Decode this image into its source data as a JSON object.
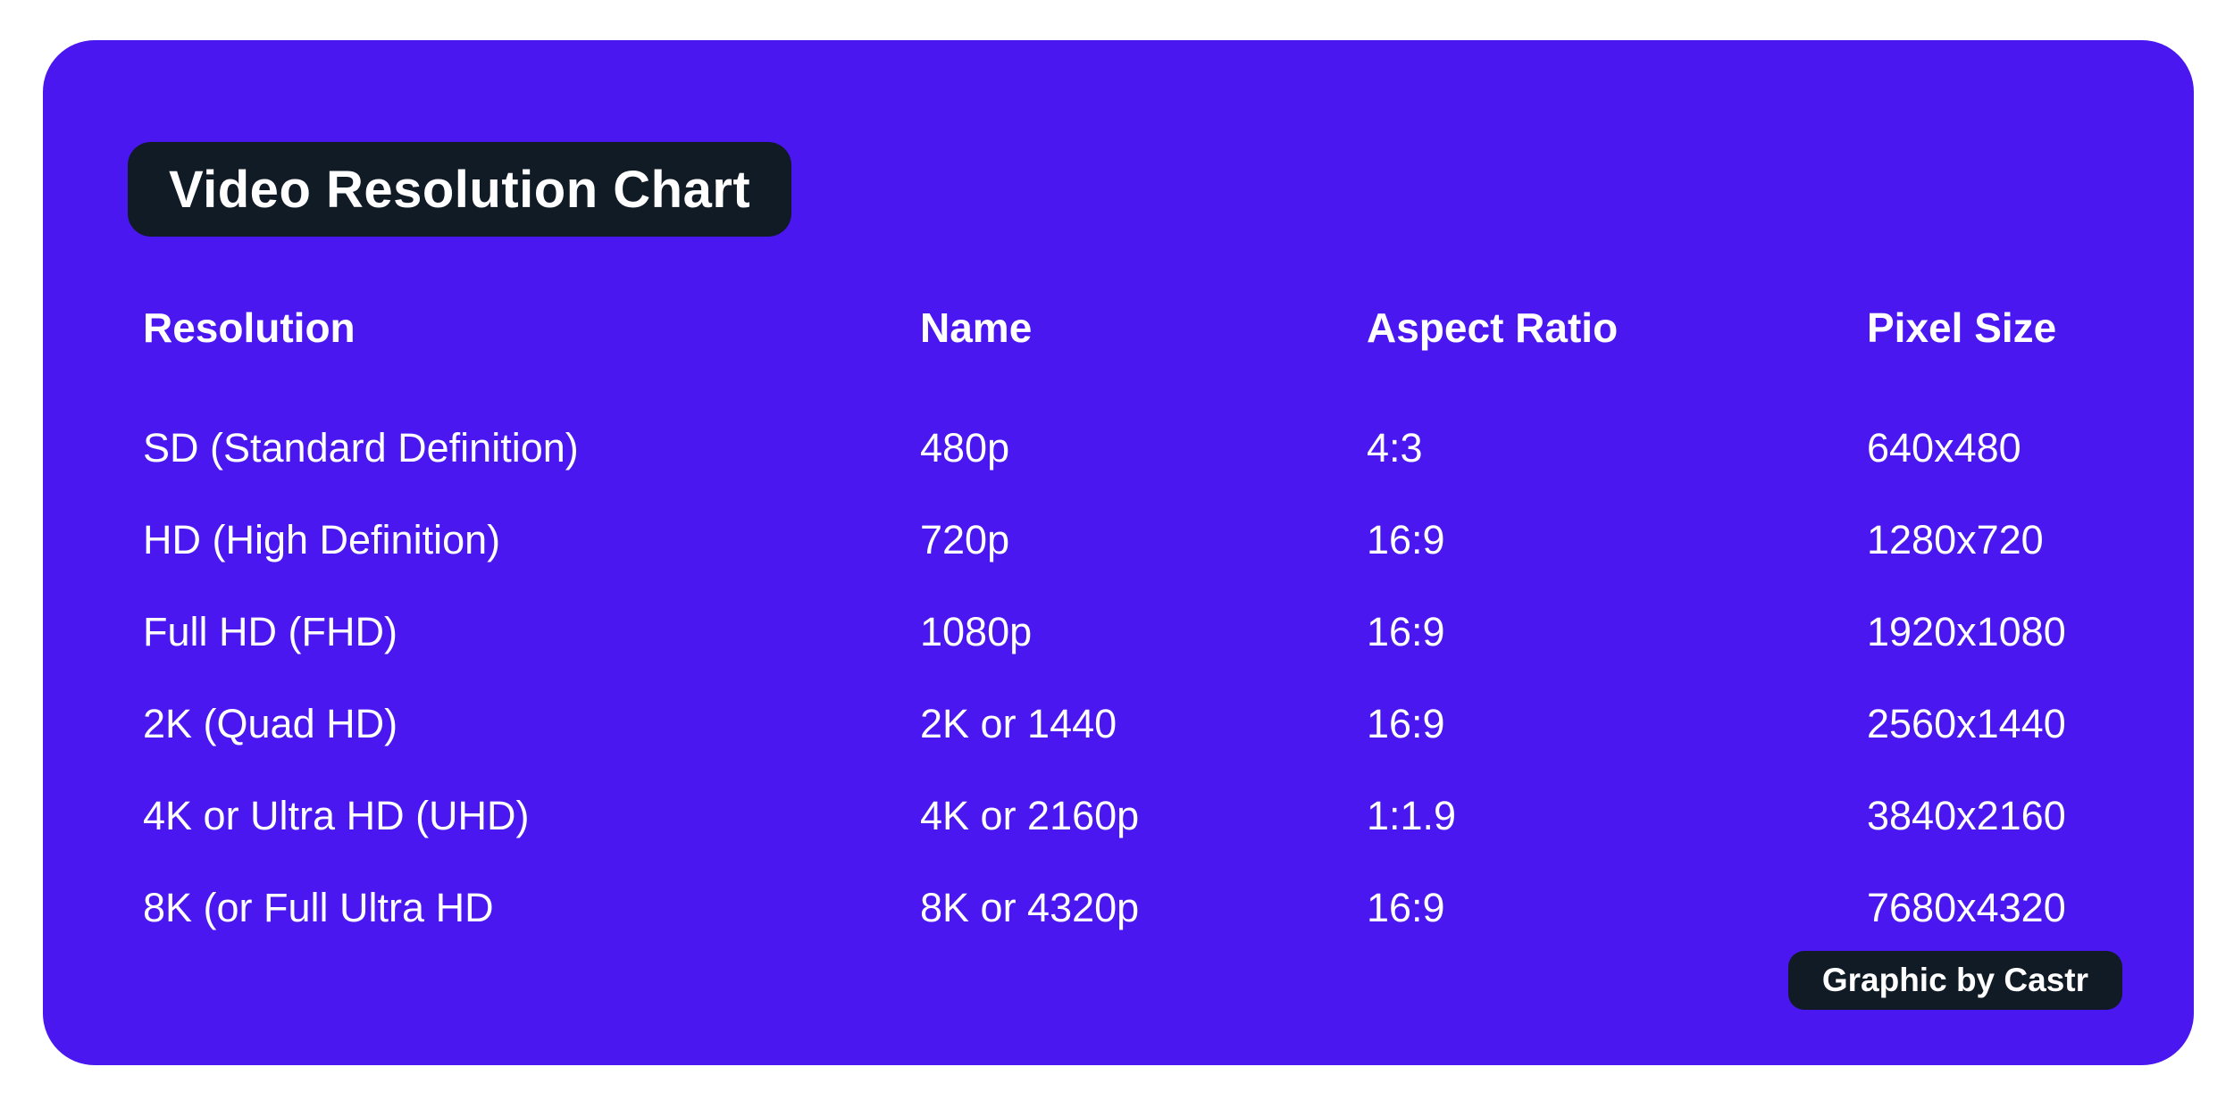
{
  "card": {
    "background_color": "#4A17F0",
    "badge_color": "#111B26",
    "text_color": "#FFFFFF",
    "credit": "Graphic by Castr"
  },
  "chart_data": {
    "type": "table",
    "title": "Video Resolution Chart",
    "columns": [
      "Resolution",
      "Name",
      "Aspect Ratio",
      "Pixel Size"
    ],
    "rows": [
      [
        "SD (Standard Definition)",
        "480p",
        "4:3",
        "640x480"
      ],
      [
        "HD (High Definition)",
        "720p",
        "16:9",
        "1280x720"
      ],
      [
        "Full HD (FHD)",
        "1080p",
        "16:9",
        "1920x1080"
      ],
      [
        "2K (Quad HD)",
        "2K or 1440",
        "16:9",
        "2560x1440"
      ],
      [
        "4K or Ultra HD (UHD)",
        "4K or 2160p",
        "1:1.9",
        "3840x2160"
      ],
      [
        "8K (or Full Ultra HD",
        "8K or 4320p",
        "16:9",
        "7680x4320"
      ]
    ]
  }
}
